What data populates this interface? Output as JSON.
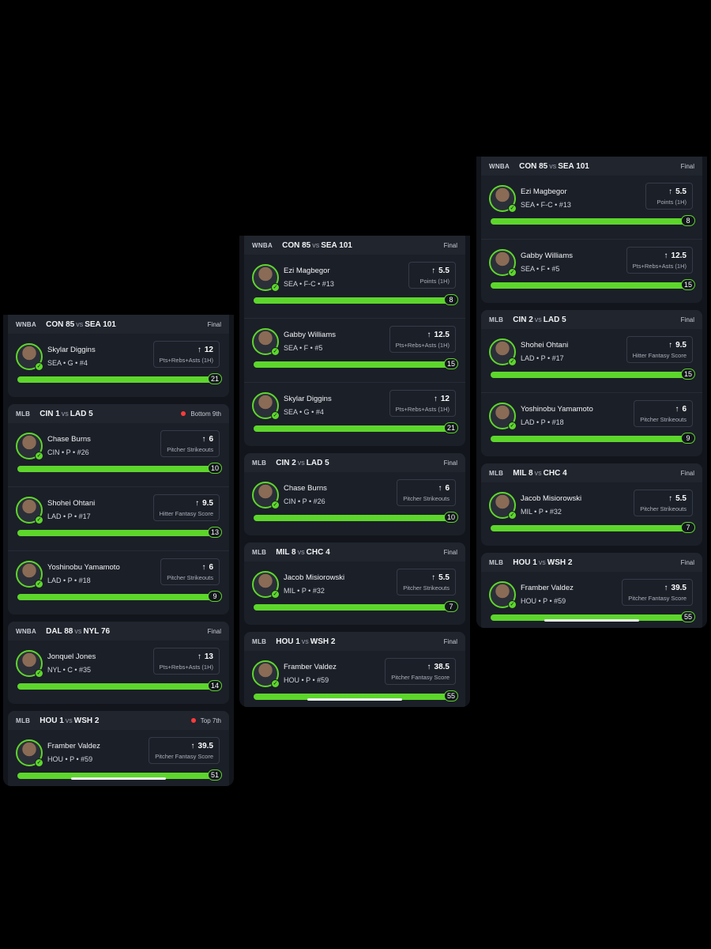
{
  "phones": [
    {
      "cards": [
        {
          "league": "WNBA",
          "home": "CON 85",
          "away": "SEA 101",
          "status": "Final",
          "live": false,
          "cut": true,
          "players": [
            {
              "name": "Skylar Diggins",
              "info": "SEA • G • #4",
              "line": "12",
              "stat": "Pts+Rebs+Asts (1H)",
              "actual": "21"
            }
          ]
        },
        {
          "league": "MLB",
          "home": "CIN 1",
          "away": "LAD 5",
          "status": "Bottom 9th",
          "live": true,
          "cut": false,
          "players": [
            {
              "name": "Chase Burns",
              "info": "CIN • P • #26",
              "line": "6",
              "stat": "Pitcher Strikeouts",
              "actual": "10"
            },
            {
              "name": "Shohei Ohtani",
              "info": "LAD • P • #17",
              "line": "9.5",
              "stat": "Hitter Fantasy Score",
              "actual": "13"
            },
            {
              "name": "Yoshinobu Yamamoto",
              "info": "LAD • P • #18",
              "line": "6",
              "stat": "Pitcher Strikeouts",
              "actual": "9"
            }
          ]
        },
        {
          "league": "WNBA",
          "home": "DAL 88",
          "away": "NYL 76",
          "status": "Final",
          "live": false,
          "cut": false,
          "players": [
            {
              "name": "Jonquel Jones",
              "info": "NYL • C • #35",
              "line": "13",
              "stat": "Pts+Rebs+Asts (1H)",
              "actual": "14"
            }
          ]
        },
        {
          "league": "MLB",
          "home": "HOU 1",
          "away": "WSH 2",
          "status": "Top 7th",
          "live": true,
          "cut": false,
          "players": [
            {
              "name": "Framber Valdez",
              "info": "HOU • P • #59",
              "line": "39.5",
              "stat": "Pitcher Fantasy Score",
              "actual": "51"
            }
          ]
        }
      ]
    },
    {
      "cards": [
        {
          "league": "WNBA",
          "home": "CON 85",
          "away": "SEA 101",
          "status": "Final",
          "live": false,
          "cut": true,
          "players": [
            {
              "name": "Ezi Magbegor",
              "info": "SEA • F-C • #13",
              "line": "5.5",
              "stat": "Points (1H)",
              "actual": "8"
            },
            {
              "name": "Gabby Williams",
              "info": "SEA • F • #5",
              "line": "12.5",
              "stat": "Pts+Rebs+Asts (1H)",
              "actual": "15"
            },
            {
              "name": "Skylar Diggins",
              "info": "SEA • G • #4",
              "line": "12",
              "stat": "Pts+Rebs+Asts (1H)",
              "actual": "21"
            }
          ]
        },
        {
          "league": "MLB",
          "home": "CIN 2",
          "away": "LAD 5",
          "status": "Final",
          "live": false,
          "cut": false,
          "players": [
            {
              "name": "Chase Burns",
              "info": "CIN • P • #26",
              "line": "6",
              "stat": "Pitcher Strikeouts",
              "actual": "10"
            }
          ]
        },
        {
          "league": "MLB",
          "home": "MIL 8",
          "away": "CHC 4",
          "status": "Final",
          "live": false,
          "cut": false,
          "players": [
            {
              "name": "Jacob Misiorowski",
              "info": "MIL • P • #32",
              "line": "5.5",
              "stat": "Pitcher Strikeouts",
              "actual": "7"
            }
          ]
        },
        {
          "league": "MLB",
          "home": "HOU 1",
          "away": "WSH 2",
          "status": "Final",
          "live": false,
          "cut": false,
          "players": [
            {
              "name": "Framber Valdez",
              "info": "HOU • P • #59",
              "line": "38.5",
              "stat": "Pitcher Fantasy Score",
              "actual": "55"
            }
          ]
        }
      ]
    },
    {
      "cards": [
        {
          "league": "WNBA",
          "home": "CON 85",
          "away": "SEA 101",
          "status": "Final",
          "live": false,
          "cut": true,
          "players": [
            {
              "name": "Ezi Magbegor",
              "info": "SEA • F-C • #13",
              "line": "5.5",
              "stat": "Points (1H)",
              "actual": "8"
            },
            {
              "name": "Gabby Williams",
              "info": "SEA • F • #5",
              "line": "12.5",
              "stat": "Pts+Rebs+Asts (1H)",
              "actual": "15"
            }
          ]
        },
        {
          "league": "MLB",
          "home": "CIN 2",
          "away": "LAD 5",
          "status": "Final",
          "live": false,
          "cut": false,
          "players": [
            {
              "name": "Shohei Ohtani",
              "info": "LAD • P • #17",
              "line": "9.5",
              "stat": "Hitter Fantasy Score",
              "actual": "15"
            },
            {
              "name": "Yoshinobu Yamamoto",
              "info": "LAD • P • #18",
              "line": "6",
              "stat": "Pitcher Strikeouts",
              "actual": "9"
            }
          ]
        },
        {
          "league": "MLB",
          "home": "MIL 8",
          "away": "CHC 4",
          "status": "Final",
          "live": false,
          "cut": false,
          "players": [
            {
              "name": "Jacob Misiorowski",
              "info": "MIL • P • #32",
              "line": "5.5",
              "stat": "Pitcher Strikeouts",
              "actual": "7"
            }
          ]
        },
        {
          "league": "MLB",
          "home": "HOU 1",
          "away": "WSH 2",
          "status": "Final",
          "live": false,
          "cut": false,
          "players": [
            {
              "name": "Framber Valdez",
              "info": "HOU • P • #59",
              "line": "39.5",
              "stat": "Pitcher Fantasy Score",
              "actual": "55"
            }
          ]
        }
      ]
    }
  ],
  "labels": {
    "vs": "vs",
    "arrow": "↑",
    "check": "✓"
  }
}
